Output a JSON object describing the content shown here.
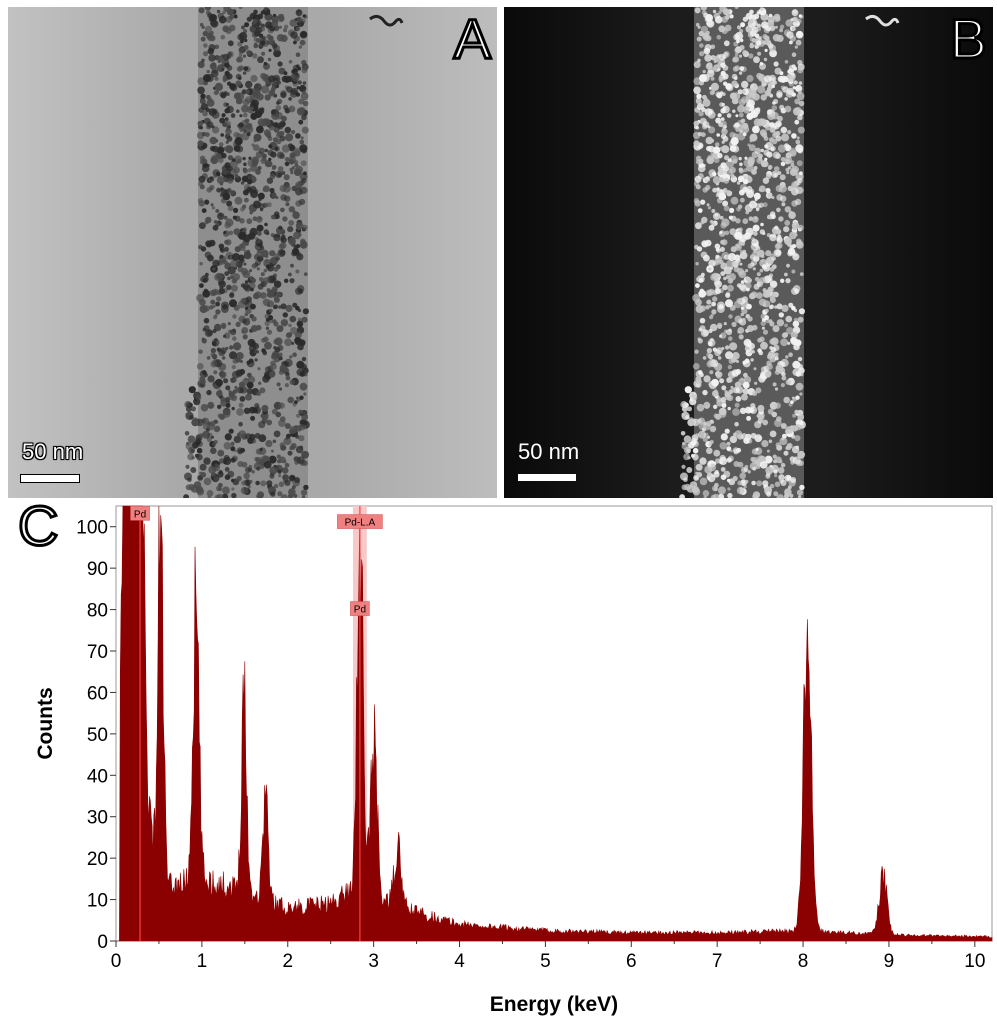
{
  "panels": {
    "a": {
      "letter": "A",
      "scale_label": "50 nm",
      "background": "#b9b9b9"
    },
    "b": {
      "letter": "B",
      "scale_label": "50 nm",
      "background": "#0e0e0e"
    },
    "c": {
      "letter": "C"
    }
  },
  "colors": {
    "spectrum": "#8b0000",
    "label_fill": "#f08080",
    "highlight_band": "#f7c9c9"
  },
  "chart_data": {
    "type": "area",
    "title": "",
    "xlabel": "Energy (keV)",
    "ylabel": "Counts",
    "xlim": [
      0,
      10.2
    ],
    "ylim": [
      0,
      105
    ],
    "xticks": [
      0,
      1,
      2,
      3,
      4,
      5,
      6,
      7,
      8,
      9,
      10
    ],
    "yticks": [
      0,
      10,
      20,
      30,
      40,
      50,
      60,
      70,
      80,
      90,
      100
    ],
    "grid": false,
    "annotations": [
      {
        "text": "Pd",
        "x": 0.28,
        "y": 103
      },
      {
        "text": "Pd-L.A",
        "x": 2.84,
        "y": 101
      },
      {
        "text": "Pd",
        "x": 2.84,
        "y": 80
      }
    ],
    "highlight_x": [
      2.76,
      2.92
    ],
    "peaks": [
      {
        "x": 0.15,
        "y": 105,
        "width": 0.08
      },
      {
        "x": 0.27,
        "y": 105,
        "width": 0.05
      },
      {
        "x": 0.52,
        "y": 84,
        "width": 0.03
      },
      {
        "x": 0.93,
        "y": 65,
        "width": 0.035
      },
      {
        "x": 1.49,
        "y": 48,
        "width": 0.03
      },
      {
        "x": 1.74,
        "y": 26,
        "width": 0.03
      },
      {
        "x": 2.84,
        "y": 89,
        "width": 0.035
      },
      {
        "x": 3.0,
        "y": 37,
        "width": 0.04
      },
      {
        "x": 3.28,
        "y": 14,
        "width": 0.04
      },
      {
        "x": 8.05,
        "y": 71,
        "width": 0.045
      },
      {
        "x": 8.93,
        "y": 14,
        "width": 0.045
      }
    ],
    "background": [
      {
        "x": 0.0,
        "y": 40
      },
      {
        "x": 0.4,
        "y": 25
      },
      {
        "x": 0.6,
        "y": 13
      },
      {
        "x": 1.0,
        "y": 15
      },
      {
        "x": 1.5,
        "y": 12
      },
      {
        "x": 2.0,
        "y": 8
      },
      {
        "x": 2.5,
        "y": 9
      },
      {
        "x": 2.7,
        "y": 12
      },
      {
        "x": 3.5,
        "y": 7
      },
      {
        "x": 4.0,
        "y": 4
      },
      {
        "x": 5.0,
        "y": 2.5
      },
      {
        "x": 6.0,
        "y": 2
      },
      {
        "x": 7.0,
        "y": 2
      },
      {
        "x": 8.0,
        "y": 2.5
      },
      {
        "x": 9.0,
        "y": 1.5
      },
      {
        "x": 10.2,
        "y": 1
      }
    ]
  }
}
